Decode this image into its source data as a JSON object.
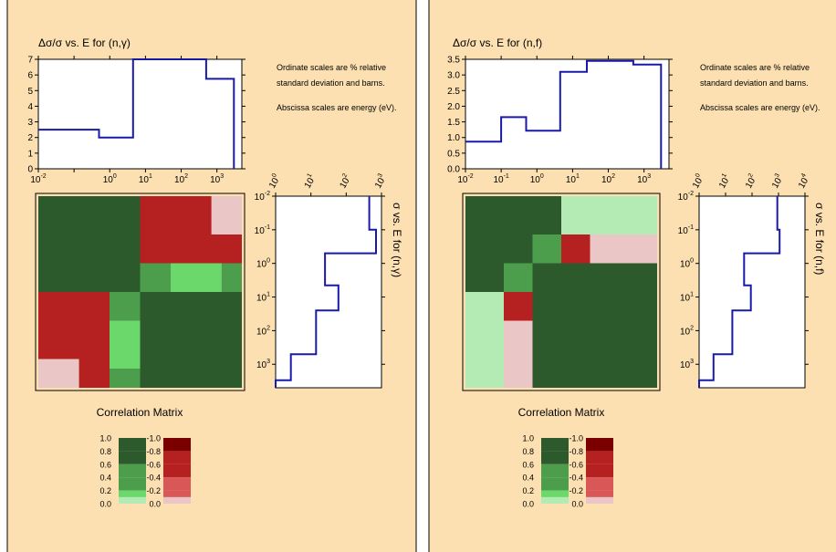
{
  "colors": {
    "panel_bg": "#fde0b2",
    "panel_border": "#000000",
    "plot_bg": "#ffffff",
    "line": "#1a1aaa",
    "positive_scale": [
      "#b4ebb4",
      "#6ad86a",
      "#4c9e4c",
      "#2d5a2d"
    ],
    "negative_scale": [
      "#ebc6c6",
      "#d95757",
      "#b52020",
      "#7a0000"
    ]
  },
  "note": {
    "line1": "Ordinate scales are % relative",
    "line2": "standard deviation and barns.",
    "line3": "Abscissa scales are energy (eV)."
  },
  "legend": {
    "positive_labels": [
      "1.0",
      "0.8",
      "0.6",
      "0.4",
      "0.2",
      "0.0"
    ],
    "negative_labels": [
      "-1.0",
      "-0.8",
      "-0.6",
      "-0.4",
      "-0.2",
      "0.0"
    ]
  },
  "chart_data": [
    {
      "type": "line",
      "reaction": "(n,γ)",
      "title": "Δσ/σ vs. E for (n,γ)",
      "x_scale": "log",
      "xlim": [
        0.01,
        5000
      ],
      "x_tick_labels": [
        "10-2",
        "100",
        "101",
        "102",
        "103"
      ],
      "ylim": [
        0,
        7
      ],
      "y_tick_labels": [
        "0",
        "1",
        "2",
        "3",
        "4",
        "5",
        "6",
        "7"
      ],
      "steps": [
        {
          "x0": 0.01,
          "x1": 0.5,
          "y": 2.5
        },
        {
          "x0": 0.5,
          "x1": 4.5,
          "y": 2.0
        },
        {
          "x0": 4.5,
          "x1": 500,
          "y": 7.0
        },
        {
          "x0": 500,
          "x1": 3000,
          "y": 5.75
        }
      ]
    },
    {
      "type": "line",
      "reaction": "(n,γ)",
      "title": "σ vs. E for (n,γ)",
      "orientation": "vertical",
      "energy_scale": "log",
      "energy_lim": [
        0.01,
        5000
      ],
      "energy_tick_labels": [
        "10-2",
        "10-1",
        "100",
        "101",
        "102",
        "103"
      ],
      "sigma_scale": "log",
      "sigma_lim": [
        1,
        1000
      ],
      "sigma_tick_labels": [
        "100",
        "101",
        "102",
        "103"
      ],
      "steps": [
        {
          "e0": 0.01,
          "e1": 0.1,
          "s": 450
        },
        {
          "e0": 0.1,
          "e1": 0.5,
          "s": 700
        },
        {
          "e0": 0.5,
          "e1": 4.5,
          "s": 25
        },
        {
          "e0": 4.5,
          "e1": 25,
          "s": 60
        },
        {
          "e0": 25,
          "e1": 500,
          "s": 14
        },
        {
          "e0": 500,
          "e1": 3000,
          "s": 2.7
        },
        {
          "e0": 3000,
          "e1": 5000,
          "s": 1
        }
      ]
    },
    {
      "type": "heatmap",
      "reaction": "(n,γ)",
      "title": "Correlation Matrix",
      "grid_size": 20,
      "cells": [
        {
          "r0": 0,
          "c0": 0,
          "r1": 10,
          "c1": 10,
          "v": 1.0
        },
        {
          "r0": 0,
          "c0": 10,
          "r1": 7,
          "c1": 20,
          "v": -0.4
        },
        {
          "r0": 0,
          "c0": 17,
          "r1": 4,
          "c1": 20,
          "v": -0.1
        },
        {
          "r0": 7,
          "c0": 10,
          "r1": 10,
          "c1": 13,
          "v": 0.5
        },
        {
          "r0": 7,
          "c0": 13,
          "r1": 10,
          "c1": 18,
          "v": 0.3
        },
        {
          "r0": 7,
          "c0": 18,
          "r1": 10,
          "c1": 20,
          "v": 0.5
        },
        {
          "r0": 10,
          "c0": 0,
          "r1": 20,
          "c1": 7,
          "v": -0.4
        },
        {
          "r0": 17,
          "c0": 0,
          "r1": 20,
          "c1": 4,
          "v": -0.1
        },
        {
          "r0": 10,
          "c0": 7,
          "r1": 13,
          "c1": 10,
          "v": 0.5
        },
        {
          "r0": 13,
          "c0": 7,
          "r1": 18,
          "c1": 10,
          "v": 0.3
        },
        {
          "r0": 18,
          "c0": 7,
          "r1": 20,
          "c1": 10,
          "v": 0.5
        },
        {
          "r0": 10,
          "c0": 10,
          "r1": 20,
          "c1": 20,
          "v": 1.0
        }
      ]
    },
    {
      "type": "line",
      "reaction": "(n,f)",
      "title": "Δσ/σ vs. E for (n,f)",
      "x_scale": "log",
      "xlim": [
        0.01,
        5000
      ],
      "x_tick_labels": [
        "10-2",
        "10-1",
        "100",
        "101",
        "102",
        "103"
      ],
      "ylim": [
        0,
        3.5
      ],
      "y_tick_labels": [
        "0.0",
        "0.5",
        "1.0",
        "1.5",
        "2.0",
        "2.5",
        "3.0",
        "3.5"
      ],
      "steps": [
        {
          "x0": 0.01,
          "x1": 0.1,
          "y": 0.87
        },
        {
          "x0": 0.1,
          "x1": 0.5,
          "y": 1.65
        },
        {
          "x0": 0.5,
          "x1": 4.5,
          "y": 1.22
        },
        {
          "x0": 4.5,
          "x1": 25,
          "y": 3.1
        },
        {
          "x0": 25,
          "x1": 500,
          "y": 3.45
        },
        {
          "x0": 500,
          "x1": 3000,
          "y": 3.33
        }
      ]
    },
    {
      "type": "line",
      "reaction": "(n,f)",
      "title": "σ vs. E for (n,f)",
      "orientation": "vertical",
      "energy_scale": "log",
      "energy_lim": [
        0.01,
        5000
      ],
      "energy_tick_labels": [
        "10-2",
        "10-1",
        "100",
        "101",
        "102",
        "103"
      ],
      "sigma_scale": "log",
      "sigma_lim": [
        1,
        10000
      ],
      "sigma_tick_labels": [
        "100",
        "101",
        "102",
        "103",
        "104"
      ],
      "steps": [
        {
          "e0": 0.01,
          "e1": 0.1,
          "s": 900
        },
        {
          "e0": 0.1,
          "e1": 0.5,
          "s": 1100
        },
        {
          "e0": 0.5,
          "e1": 4.5,
          "s": 50
        },
        {
          "e0": 4.5,
          "e1": 25,
          "s": 90
        },
        {
          "e0": 25,
          "e1": 500,
          "s": 18
        },
        {
          "e0": 500,
          "e1": 3000,
          "s": 3.5
        },
        {
          "e0": 3000,
          "e1": 5000,
          "s": 1
        }
      ]
    },
    {
      "type": "heatmap",
      "reaction": "(n,f)",
      "title": "Correlation Matrix",
      "grid_size": 20,
      "cells": [
        {
          "r0": 0,
          "c0": 0,
          "r1": 10,
          "c1": 10,
          "v": 1.0
        },
        {
          "r0": 0,
          "c0": 10,
          "r1": 4,
          "c1": 20,
          "v": 0.1
        },
        {
          "r0": 4,
          "c0": 7,
          "r1": 7,
          "c1": 10,
          "v": 0.5
        },
        {
          "r0": 4,
          "c0": 10,
          "r1": 7,
          "c1": 13,
          "v": -0.4
        },
        {
          "r0": 4,
          "c0": 13,
          "r1": 7,
          "c1": 20,
          "v": -0.1
        },
        {
          "r0": 7,
          "c0": 4,
          "r1": 10,
          "c1": 7,
          "v": 0.5
        },
        {
          "r0": 7,
          "c0": 7,
          "r1": 20,
          "c1": 20,
          "v": 1.0
        },
        {
          "r0": 10,
          "c0": 0,
          "r1": 20,
          "c1": 4,
          "v": 0.1
        },
        {
          "r0": 10,
          "c0": 4,
          "r1": 13,
          "c1": 7,
          "v": -0.4
        },
        {
          "r0": 13,
          "c0": 4,
          "r1": 20,
          "c1": 7,
          "v": -0.1
        }
      ]
    }
  ]
}
